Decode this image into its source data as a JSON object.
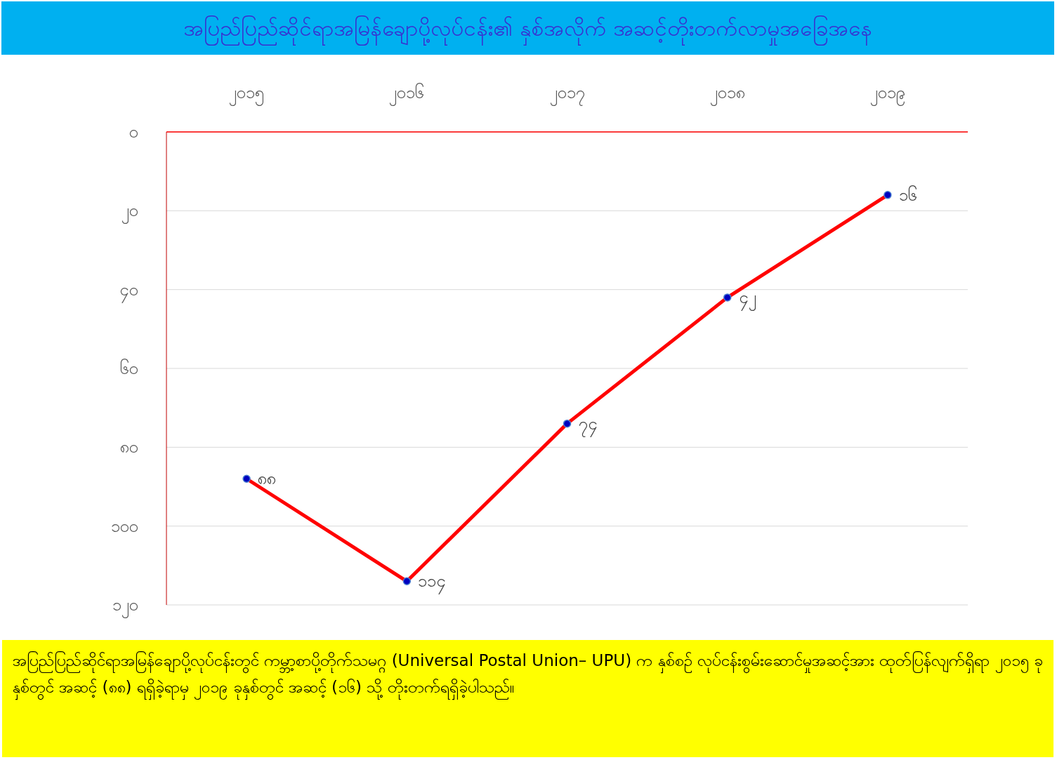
{
  "chart_data": {
    "type": "line",
    "title": "အပြည်ပြည်ဆိုင်ရာအမြန်ချောပို့လုပ်ငန်း၏ နှစ်အလိုက် အဆင့်တိုးတက်လာမှုအခြေအနေ",
    "categories": [
      "၂၀၁၅",
      "၂၀၁၆",
      "၂၀၁၇",
      "၂၀၁၈",
      "၂၀၁၉"
    ],
    "values": [
      88,
      114,
      74,
      42,
      16
    ],
    "value_labels": [
      "၈၈",
      "၁၁၄",
      "၇၄",
      "၄၂",
      "၁၆"
    ],
    "color": "#ff0000",
    "ylim": [
      120,
      0
    ],
    "yticks": [
      {
        "value": 0,
        "label": "၀"
      },
      {
        "value": 20,
        "label": "၂၀"
      },
      {
        "value": 40,
        "label": "၄၀"
      },
      {
        "value": 60,
        "label": "၆၀"
      },
      {
        "value": 80,
        "label": "၈၀"
      },
      {
        "value": 100,
        "label": "၁၀၀"
      },
      {
        "value": 120,
        "label": "၁၂၀"
      }
    ],
    "grid": "y",
    "marker": "circle",
    "line_style": "solid",
    "annotations": [
      "အပြည်ပြည်ဆိုင်ရာအမြန်ချောပို့လုပ်ငန်းတွင်   ကမ္ဘာ့စာပို့တိုက်သမဂ္ဂ (Universal Postal Union– UPU) က နှစ်စဉ် လုပ်ငန်းစွမ်းဆောင်မှုအဆင့်အား ထုတ်ပြန်လျက်ရှိရာ ၂၀၁၅ ခုနှစ်တွင် အဆင့် (၈၈) ရရှိခဲ့ရာမှ ၂၀၁၉ ခုနှစ်တွင် အဆင့် (၁၆) သို့ တိုးတက်ရရှိခဲ့ပါသည်။"
    ]
  }
}
